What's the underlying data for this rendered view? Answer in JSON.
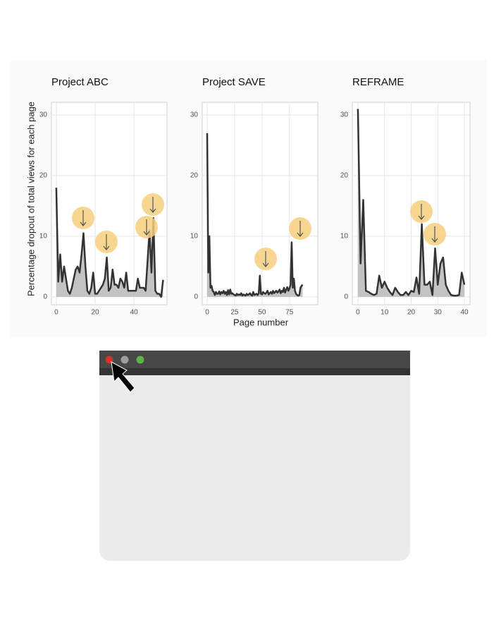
{
  "chart_data": [
    {
      "type": "area",
      "title": "Project ABC",
      "ylabel": "Percentage dropout of total views for each page",
      "color": "#333333",
      "fill": "#bdbdbd",
      "x": [
        0,
        1,
        2,
        3,
        4,
        5,
        6,
        7,
        8,
        9,
        10,
        11,
        12,
        13,
        14,
        15,
        16,
        17,
        18,
        19,
        20,
        21,
        22,
        23,
        24,
        25,
        26,
        27,
        28,
        29,
        30,
        31,
        32,
        33,
        34,
        35,
        36,
        37,
        38,
        39,
        40,
        41,
        42,
        43,
        44,
        45,
        46,
        47,
        48,
        49,
        50,
        51,
        52,
        53,
        54,
        55
      ],
      "values": [
        18,
        2.5,
        7,
        2.5,
        5,
        3,
        1,
        0.5,
        1.5,
        3,
        4.5,
        5,
        4,
        7,
        10.5,
        5,
        1,
        0.5,
        1.5,
        4,
        0.5,
        0.5,
        1,
        1.5,
        2,
        3,
        6.5,
        1,
        1.5,
        4.5,
        2,
        2,
        1.5,
        3,
        2.5,
        1.5,
        4,
        1,
        1,
        1,
        1,
        1,
        3,
        1.5,
        1.5,
        1.5,
        1,
        6,
        11,
        4,
        13,
        1,
        0.5,
        0.5,
        0,
        2.8
      ],
      "xlim": [
        -2.5,
        57
      ],
      "ylim": [
        -1.3,
        32.1
      ],
      "xticks": [
        0,
        20,
        40
      ],
      "yticks": [
        0,
        10,
        20,
        30
      ],
      "grid": true
    },
    {
      "type": "area",
      "title": "Project SAVE",
      "xlabel": "Page number",
      "color": "#333333",
      "fill": "#bdbdbd",
      "x": [
        0,
        1,
        2,
        3,
        4,
        5,
        6,
        7,
        8,
        9,
        10,
        11,
        12,
        13,
        14,
        15,
        16,
        17,
        18,
        19,
        20,
        21,
        22,
        23,
        24,
        25,
        26,
        27,
        28,
        29,
        30,
        31,
        32,
        33,
        34,
        35,
        36,
        37,
        38,
        39,
        40,
        41,
        42,
        43,
        44,
        45,
        46,
        47,
        48,
        49,
        50,
        51,
        52,
        53,
        54,
        55,
        56,
        57,
        58,
        59,
        60,
        61,
        62,
        63,
        64,
        65,
        66,
        67,
        68,
        69,
        70,
        71,
        72,
        73,
        74,
        75,
        76,
        77,
        78,
        79,
        80,
        81,
        82,
        83,
        84,
        85,
        86,
        87
      ],
      "values": [
        27,
        4,
        10,
        1.5,
        1.8,
        1,
        0.8,
        0.3,
        0.8,
        0.5,
        0.5,
        0.9,
        0.4,
        0.8,
        0.6,
        1,
        0.5,
        0.8,
        0.3,
        1.1,
        0.4,
        1.2,
        0.5,
        0.6,
        0.4,
        0.3,
        0.2,
        0.5,
        0.3,
        0.4,
        0.3,
        0.6,
        0.2,
        0.4,
        0.3,
        0.2,
        0.5,
        0.3,
        0.4,
        0.6,
        0.3,
        0.2,
        0.8,
        0.3,
        0.4,
        0.5,
        0.3,
        0.6,
        3.5,
        0.5,
        0.4,
        0.8,
        0.6,
        0.5,
        0.7,
        1,
        0.4,
        0.6,
        0.8,
        0.5,
        1,
        0.6,
        0.8,
        1,
        0.7,
        0.9,
        1.2,
        0.6,
        1,
        0.8,
        1.5,
        0.7,
        1.2,
        1.6,
        1,
        1.4,
        2,
        9,
        1.5,
        3,
        1,
        0.5,
        0.3,
        0.2,
        0.3,
        1.5,
        1.8,
        2
      ],
      "xlim": [
        -4.5,
        100.8
      ],
      "ylim": [
        -1.3,
        32.1
      ],
      "xticks": [
        0,
        25,
        50,
        75
      ],
      "yticks": [
        0,
        10,
        20,
        30
      ],
      "grid": true
    },
    {
      "type": "area",
      "title": "REFRAME",
      "color": "#333333",
      "fill": "#bdbdbd",
      "x": [
        0,
        1,
        2,
        3,
        4,
        5,
        6,
        7,
        8,
        9,
        10,
        11,
        12,
        13,
        14,
        15,
        16,
        17,
        18,
        19,
        20,
        21,
        22,
        23,
        24,
        25,
        26,
        27,
        28,
        29,
        30,
        31,
        32,
        33,
        34,
        35,
        36,
        37,
        38,
        39,
        40
      ],
      "values": [
        31,
        5.5,
        16,
        1,
        0.8,
        0.5,
        0.3,
        0.5,
        3.5,
        1.5,
        2.5,
        1.5,
        0.8,
        0.3,
        1.5,
        0.8,
        0.3,
        0.3,
        0.8,
        0.3,
        1,
        0.8,
        3.2,
        0.5,
        12,
        2,
        2,
        2.5,
        0.3,
        8,
        2,
        5.5,
        6.5,
        2,
        1,
        0.3,
        0.2,
        0.2,
        0.3,
        4,
        2
      ],
      "xlim": [
        -2.1,
        42.1
      ],
      "ylim": [
        -1.3,
        32.1
      ],
      "xticks": [
        0,
        10,
        20,
        30,
        40
      ],
      "yticks": [
        0,
        10,
        20,
        30
      ],
      "grid": true
    }
  ]
}
